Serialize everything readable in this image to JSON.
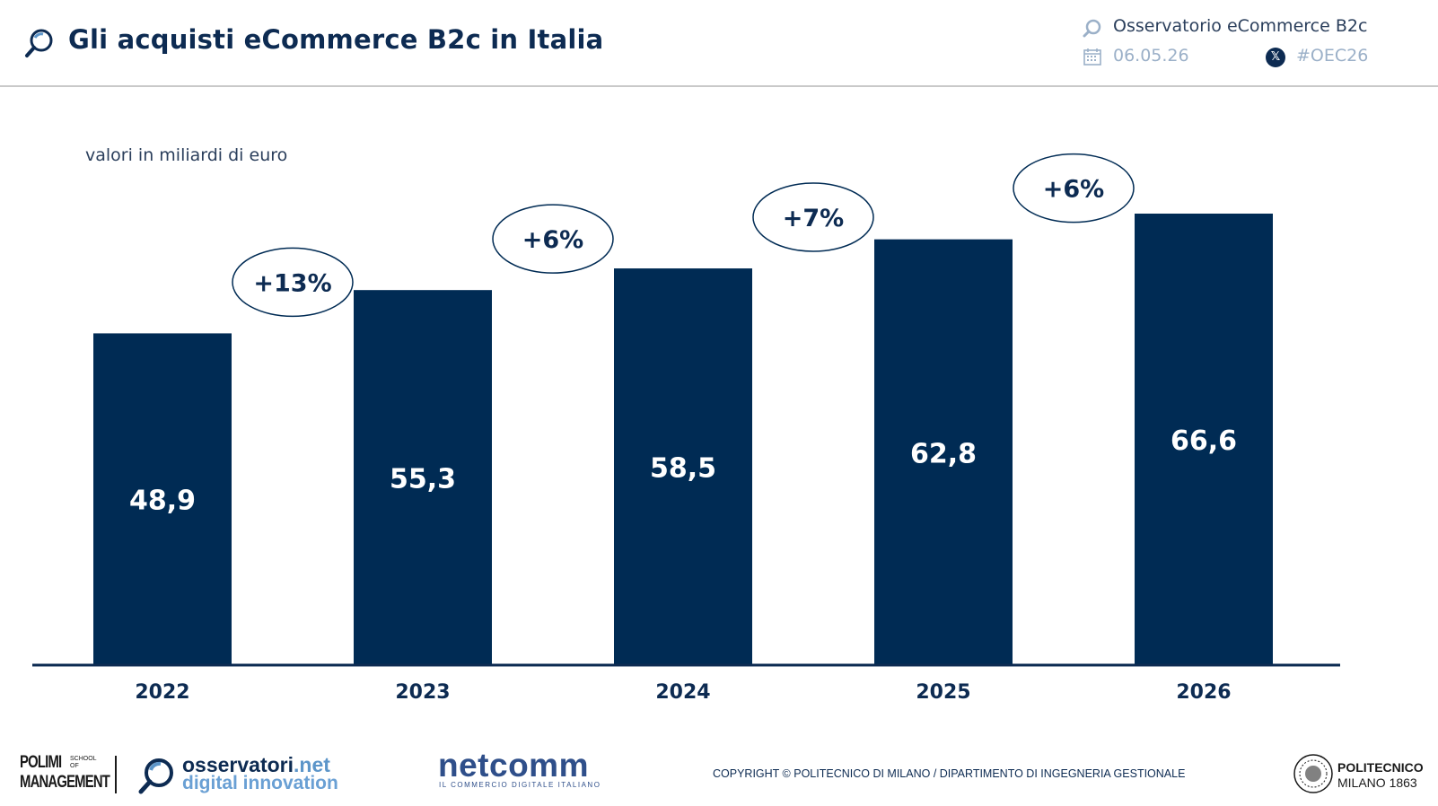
{
  "header": {
    "title": "Gli acquisti eCommerce B2c in Italia",
    "observatory": "Osservatorio eCommerce B2c",
    "date": "06.05.26",
    "hashtag": "#OEC26",
    "icons": [
      "magnifier-logo-icon",
      "calendar-icon",
      "x-social-icon"
    ]
  },
  "colors": {
    "bar": "#002b54",
    "title": "#0d2b52",
    "muted": "#9bb0c8",
    "axis": "#0d2b52"
  },
  "chart_data": {
    "type": "bar",
    "title": "",
    "subtitle": "valori in miliardi di euro",
    "xlabel": "",
    "ylabel": "",
    "categories": [
      "2022",
      "2023",
      "2024",
      "2025",
      "2026"
    ],
    "values": [
      48.9,
      55.3,
      58.5,
      62.8,
      66.6
    ],
    "data_labels": [
      "48,9",
      "55,3",
      "58,5",
      "62,8",
      "66,6"
    ],
    "growth_labels": [
      "+13%",
      "+6%",
      "+7%",
      "+6%"
    ],
    "ylim": [
      0,
      66.6
    ],
    "grid": false,
    "legend": "none"
  },
  "footer": {
    "polimi_top": "POLIMI",
    "polimi_school": "SCHOOL OF",
    "polimi_bottom": "MANAGEMENT",
    "osservatori_main": "osservatori",
    "osservatori_tld": ".net",
    "osservatori_sub": "digital innovation",
    "netcomm": "netcomm",
    "netcomm_sub": "IL COMMERCIO DIGITALE ITALIANO",
    "copyright": "COPYRIGHT © POLITECNICO DI MILANO / DIPARTIMENTO DI INGEGNERIA GESTIONALE",
    "politecnico_name": "POLITECNICO",
    "politecnico_city": "MILANO 1863"
  }
}
